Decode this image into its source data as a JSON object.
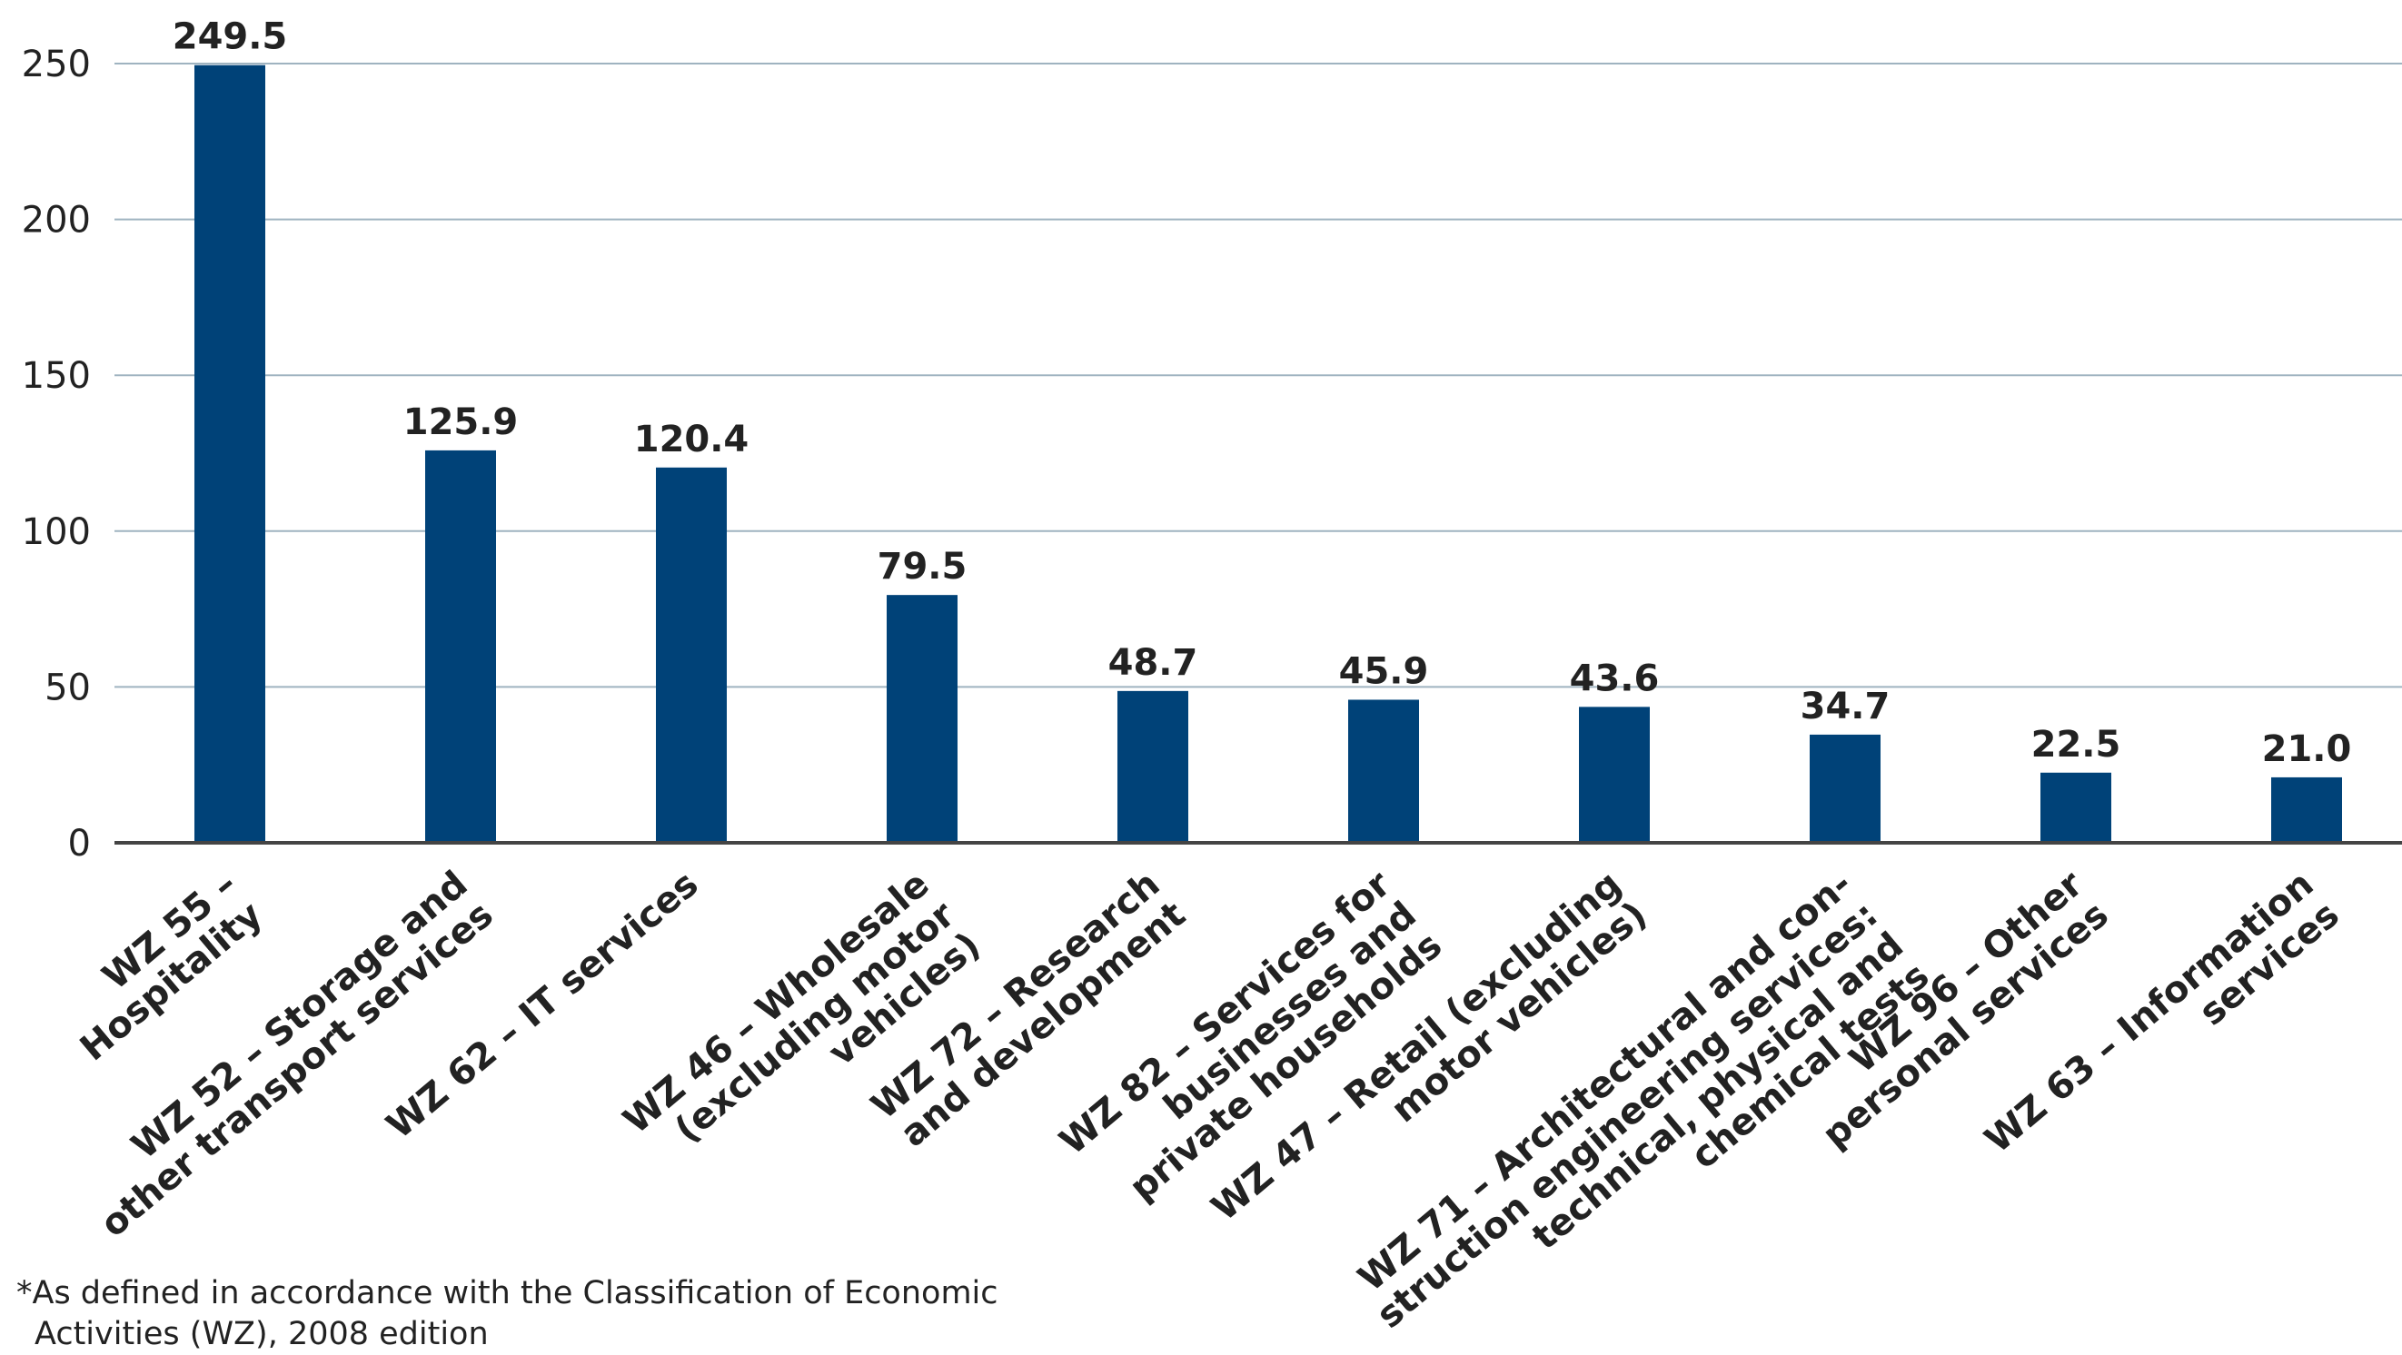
{
  "chart_data": {
    "type": "bar",
    "categories": [
      [
        "WZ 55 –",
        "Hospitality"
      ],
      [
        "WZ 52 – Storage and",
        "other transport services"
      ],
      [
        "WZ 62 – IT services"
      ],
      [
        "WZ 46 – Wholesale",
        "(excluding motor",
        "vehicles)"
      ],
      [
        "WZ 72 – Research",
        "and development"
      ],
      [
        "WZ 82 – Services for",
        "businesses and",
        "private households"
      ],
      [
        "WZ 47 – Retail (excluding",
        "motor vehicles)"
      ],
      [
        "WZ 71 – Architectural and con-",
        "struction engineering services:",
        "technical, physical and",
        "chemical tests"
      ],
      [
        "WZ 96 – Other",
        "personal services"
      ],
      [
        "WZ 63 – Information",
        "services"
      ]
    ],
    "values": [
      249.5,
      125.9,
      120.4,
      79.5,
      48.7,
      45.9,
      43.6,
      34.7,
      22.5,
      21.0
    ],
    "value_labels": [
      "249.5",
      "125.9",
      "120.4",
      "79.5",
      "48.7",
      "45.9",
      "43.6",
      "34.7",
      "22.5",
      "21.0"
    ],
    "yticks": [
      0,
      50,
      100,
      150,
      200,
      250
    ],
    "ylim": [
      0,
      250
    ],
    "grid": true,
    "colors": {
      "bar": "#004278",
      "grid": "#9fb3c0",
      "axis": "#444444"
    }
  },
  "footnote": {
    "line1": "*As defined in accordance with the Classification of Economic",
    "line2": "Activities (WZ), 2008 edition"
  }
}
